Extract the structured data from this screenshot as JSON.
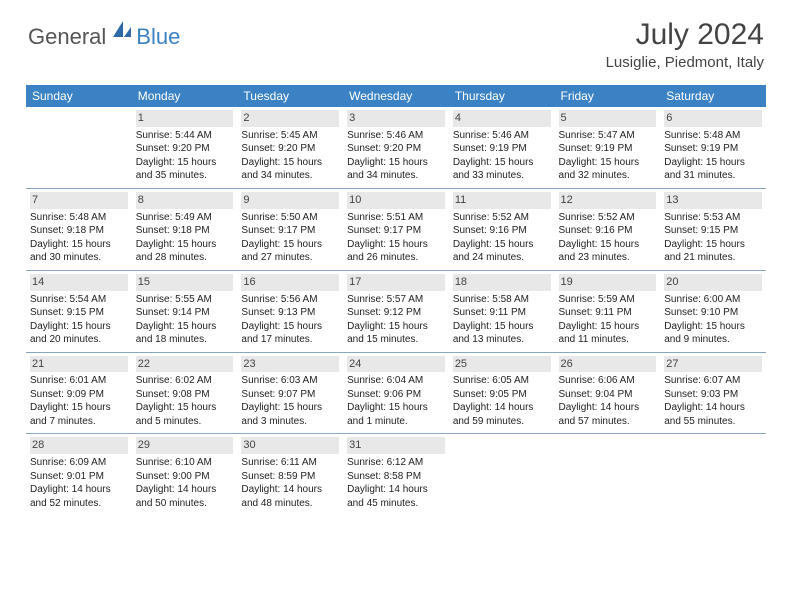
{
  "logo": {
    "text1": "General",
    "text2": "Blue"
  },
  "title": "July 2024",
  "location": "Lusiglie, Piedmont, Italy",
  "colors": {
    "header_bg": "#3b82c4",
    "header_text": "#ffffff",
    "daynum_bg": "#e8e8e8",
    "border": "#8aa8c2",
    "body_text": "#222222",
    "title_text": "#444444"
  },
  "days_of_week": [
    "Sunday",
    "Monday",
    "Tuesday",
    "Wednesday",
    "Thursday",
    "Friday",
    "Saturday"
  ],
  "weeks": [
    [
      null,
      {
        "n": "1",
        "sunrise": "5:44 AM",
        "sunset": "9:20 PM",
        "daylight": "15 hours and 35 minutes."
      },
      {
        "n": "2",
        "sunrise": "5:45 AM",
        "sunset": "9:20 PM",
        "daylight": "15 hours and 34 minutes."
      },
      {
        "n": "3",
        "sunrise": "5:46 AM",
        "sunset": "9:20 PM",
        "daylight": "15 hours and 34 minutes."
      },
      {
        "n": "4",
        "sunrise": "5:46 AM",
        "sunset": "9:19 PM",
        "daylight": "15 hours and 33 minutes."
      },
      {
        "n": "5",
        "sunrise": "5:47 AM",
        "sunset": "9:19 PM",
        "daylight": "15 hours and 32 minutes."
      },
      {
        "n": "6",
        "sunrise": "5:48 AM",
        "sunset": "9:19 PM",
        "daylight": "15 hours and 31 minutes."
      }
    ],
    [
      {
        "n": "7",
        "sunrise": "5:48 AM",
        "sunset": "9:18 PM",
        "daylight": "15 hours and 30 minutes."
      },
      {
        "n": "8",
        "sunrise": "5:49 AM",
        "sunset": "9:18 PM",
        "daylight": "15 hours and 28 minutes."
      },
      {
        "n": "9",
        "sunrise": "5:50 AM",
        "sunset": "9:17 PM",
        "daylight": "15 hours and 27 minutes."
      },
      {
        "n": "10",
        "sunrise": "5:51 AM",
        "sunset": "9:17 PM",
        "daylight": "15 hours and 26 minutes."
      },
      {
        "n": "11",
        "sunrise": "5:52 AM",
        "sunset": "9:16 PM",
        "daylight": "15 hours and 24 minutes."
      },
      {
        "n": "12",
        "sunrise": "5:52 AM",
        "sunset": "9:16 PM",
        "daylight": "15 hours and 23 minutes."
      },
      {
        "n": "13",
        "sunrise": "5:53 AM",
        "sunset": "9:15 PM",
        "daylight": "15 hours and 21 minutes."
      }
    ],
    [
      {
        "n": "14",
        "sunrise": "5:54 AM",
        "sunset": "9:15 PM",
        "daylight": "15 hours and 20 minutes."
      },
      {
        "n": "15",
        "sunrise": "5:55 AM",
        "sunset": "9:14 PM",
        "daylight": "15 hours and 18 minutes."
      },
      {
        "n": "16",
        "sunrise": "5:56 AM",
        "sunset": "9:13 PM",
        "daylight": "15 hours and 17 minutes."
      },
      {
        "n": "17",
        "sunrise": "5:57 AM",
        "sunset": "9:12 PM",
        "daylight": "15 hours and 15 minutes."
      },
      {
        "n": "18",
        "sunrise": "5:58 AM",
        "sunset": "9:11 PM",
        "daylight": "15 hours and 13 minutes."
      },
      {
        "n": "19",
        "sunrise": "5:59 AM",
        "sunset": "9:11 PM",
        "daylight": "15 hours and 11 minutes."
      },
      {
        "n": "20",
        "sunrise": "6:00 AM",
        "sunset": "9:10 PM",
        "daylight": "15 hours and 9 minutes."
      }
    ],
    [
      {
        "n": "21",
        "sunrise": "6:01 AM",
        "sunset": "9:09 PM",
        "daylight": "15 hours and 7 minutes."
      },
      {
        "n": "22",
        "sunrise": "6:02 AM",
        "sunset": "9:08 PM",
        "daylight": "15 hours and 5 minutes."
      },
      {
        "n": "23",
        "sunrise": "6:03 AM",
        "sunset": "9:07 PM",
        "daylight": "15 hours and 3 minutes."
      },
      {
        "n": "24",
        "sunrise": "6:04 AM",
        "sunset": "9:06 PM",
        "daylight": "15 hours and 1 minute."
      },
      {
        "n": "25",
        "sunrise": "6:05 AM",
        "sunset": "9:05 PM",
        "daylight": "14 hours and 59 minutes."
      },
      {
        "n": "26",
        "sunrise": "6:06 AM",
        "sunset": "9:04 PM",
        "daylight": "14 hours and 57 minutes."
      },
      {
        "n": "27",
        "sunrise": "6:07 AM",
        "sunset": "9:03 PM",
        "daylight": "14 hours and 55 minutes."
      }
    ],
    [
      {
        "n": "28",
        "sunrise": "6:09 AM",
        "sunset": "9:01 PM",
        "daylight": "14 hours and 52 minutes."
      },
      {
        "n": "29",
        "sunrise": "6:10 AM",
        "sunset": "9:00 PM",
        "daylight": "14 hours and 50 minutes."
      },
      {
        "n": "30",
        "sunrise": "6:11 AM",
        "sunset": "8:59 PM",
        "daylight": "14 hours and 48 minutes."
      },
      {
        "n": "31",
        "sunrise": "6:12 AM",
        "sunset": "8:58 PM",
        "daylight": "14 hours and 45 minutes."
      },
      null,
      null,
      null
    ]
  ],
  "labels": {
    "sunrise": "Sunrise: ",
    "sunset": "Sunset: ",
    "daylight": "Daylight: "
  }
}
